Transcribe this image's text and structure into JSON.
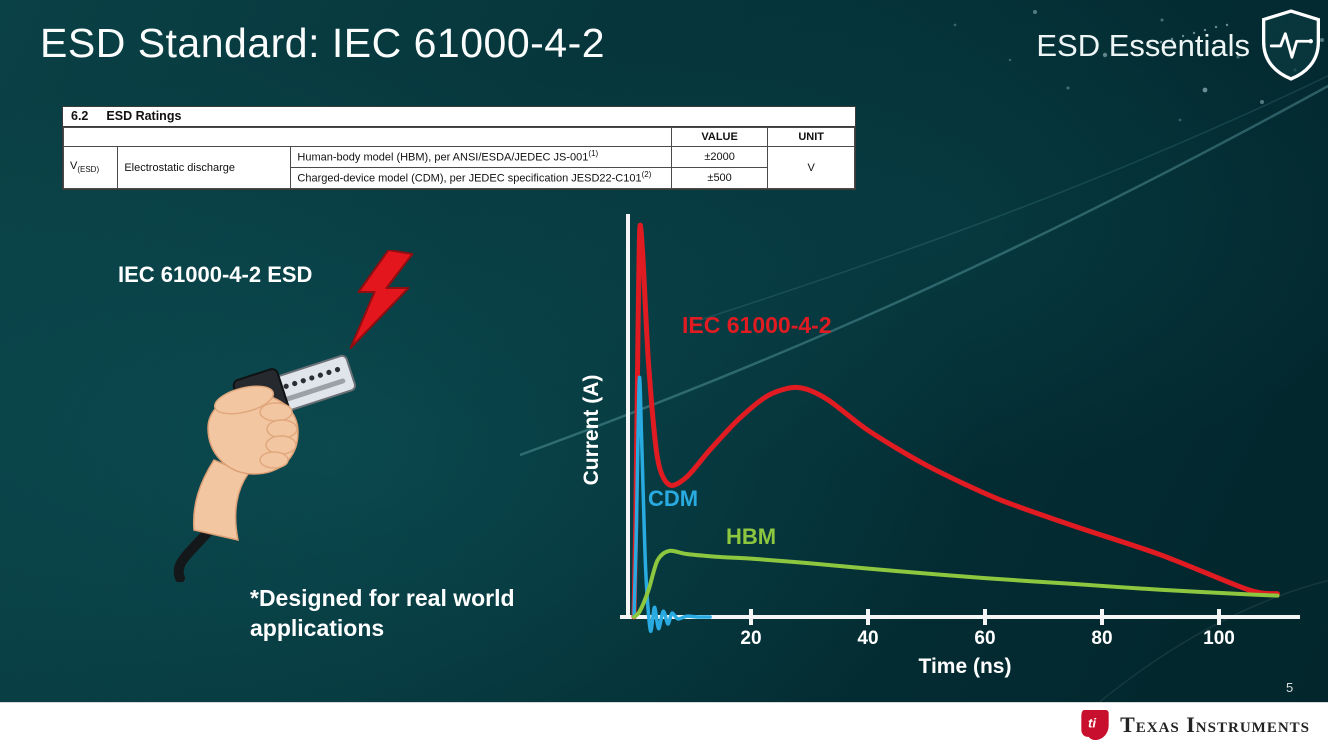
{
  "slide": {
    "title": "ESD Standard: IEC 61000-4-2",
    "brand_tagline": "ESD Essentials",
    "page_number": "5",
    "footer_brand": "Texas Instruments"
  },
  "ratings_table": {
    "section_number": "6.2",
    "section_title": "ESD Ratings",
    "value_header": "VALUE",
    "unit_header": "UNIT",
    "param_symbol": "V",
    "param_symbol_sub": "(ESD)",
    "param_name": "Electrostatic discharge",
    "rows": [
      {
        "description": "Human-body model (HBM), per ANSI/ESDA/JEDEC JS-001",
        "footnote": "(1)",
        "value": "±2000"
      },
      {
        "description": "Charged-device model (CDM), per JEDEC specification JESD22-C101",
        "footnote": "(2)",
        "value": "±500"
      }
    ],
    "unit": "V"
  },
  "illustration": {
    "caption": "IEC 61000-4-2 ESD",
    "note": "*Designed for real world\napplications"
  },
  "chart": {
    "ylabel": "Current (A)",
    "xlabel": "Time (ns)",
    "tick_labels": [
      "20",
      "40",
      "60",
      "80",
      "100"
    ],
    "labels": {
      "iec": "IEC 61000-4-2",
      "cdm": "CDM",
      "hbm": "HBM"
    },
    "colors": {
      "iec": "#e01b22",
      "cdm": "#29abe2",
      "hbm": "#8dc63f",
      "axis": "#f5f5f5"
    }
  },
  "chart_data": {
    "type": "line",
    "title": "",
    "xlabel": "Time (ns)",
    "ylabel": "Current (A)",
    "xlim": [
      0,
      112
    ],
    "ylim": [
      0,
      10.5
    ],
    "x_ticks": [
      20,
      40,
      60,
      80,
      100
    ],
    "grid": false,
    "legend_position": "inline-labels",
    "series": [
      {
        "name": "IEC 61000-4-2",
        "color": "#e01b22",
        "x": [
          0,
          0.3,
          0.7,
          1,
          1.5,
          2.5,
          4,
          6,
          9,
          13,
          18,
          23,
          28,
          33,
          40,
          50,
          62,
          75,
          90,
          105,
          110
        ],
        "y": [
          0,
          2.5,
          7.5,
          10,
          9.3,
          6.5,
          4.1,
          3.4,
          3.6,
          4.3,
          5.1,
          5.7,
          5.9,
          5.6,
          4.8,
          3.9,
          3.05,
          2.35,
          1.6,
          0.7,
          0.6
        ]
      },
      {
        "name": "CDM",
        "color": "#29abe2",
        "x": [
          0,
          0.4,
          0.9,
          1.3,
          2,
          2.8,
          3.5,
          4.2,
          5,
          5.8,
          6.5,
          7.5,
          9,
          11,
          13
        ],
        "y": [
          0,
          2.2,
          6.1,
          4.6,
          1.2,
          -0.35,
          0.25,
          -0.3,
          0.15,
          -0.18,
          0.1,
          -0.05,
          0.02,
          0,
          0
        ]
      },
      {
        "name": "HBM",
        "color": "#8dc63f",
        "x": [
          0,
          1,
          2.5,
          4,
          6,
          9,
          14,
          20,
          30,
          45,
          60,
          75,
          90,
          105,
          110
        ],
        "y": [
          0,
          0.15,
          0.7,
          1.45,
          1.7,
          1.62,
          1.55,
          1.5,
          1.38,
          1.18,
          1.0,
          0.85,
          0.7,
          0.58,
          0.55
        ]
      }
    ]
  }
}
